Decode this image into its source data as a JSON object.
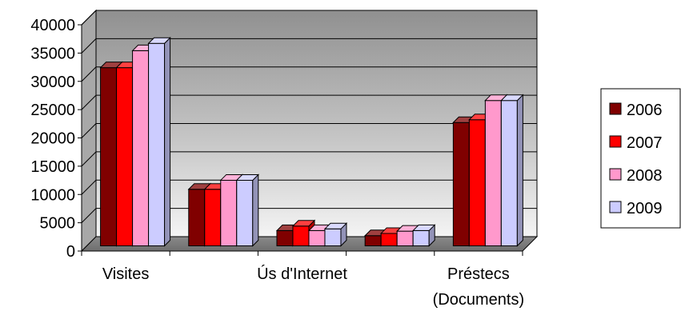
{
  "chart_data": {
    "type": "bar",
    "title": "",
    "xlabel": "",
    "ylabel": "",
    "ylim": [
      0,
      40000
    ],
    "yticks": [
      0,
      5000,
      10000,
      15000,
      20000,
      25000,
      30000,
      35000,
      40000
    ],
    "yticks_labels": [
      "0",
      "5000",
      "10000",
      "15000",
      "20000",
      "25000",
      "30000",
      "35000",
      "40000"
    ],
    "grid": true,
    "legend_position": "right",
    "categories": [
      "Visites",
      "",
      "Ús d'Internet",
      "",
      "Préstecs (Documents)"
    ],
    "category_label_lines": [
      [
        "Visites"
      ],
      [
        ""
      ],
      [
        "Ús d'Internet"
      ],
      [
        ""
      ],
      [
        "Préstecs",
        "(Documents)"
      ]
    ],
    "series": [
      {
        "name": "2006",
        "color": "#800000",
        "values": [
          31500,
          10000,
          2700,
          1800,
          21800
        ]
      },
      {
        "name": "2007",
        "color": "#ff0000",
        "values": [
          31500,
          10000,
          3500,
          2200,
          22300
        ]
      },
      {
        "name": "2008",
        "color": "#ff99cc",
        "values": [
          34500,
          11600,
          2700,
          2600,
          25700
        ]
      },
      {
        "name": "2009",
        "color": "#ccccff",
        "values": [
          35800,
          11600,
          3000,
          2700,
          25700
        ]
      }
    ]
  }
}
